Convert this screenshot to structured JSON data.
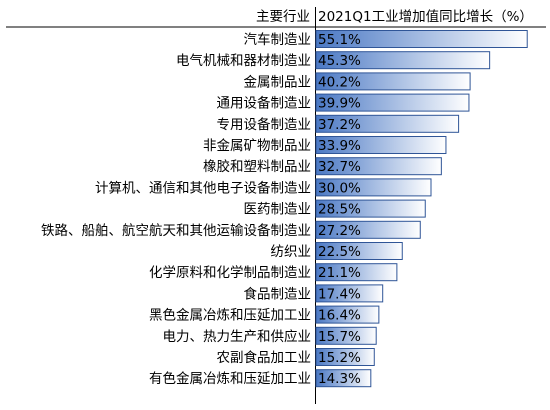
{
  "chart_data": {
    "type": "bar",
    "orientation": "horizontal",
    "header_category": "主要行业",
    "header_value": "2021Q1工业增加值同比增长（%）",
    "categories": [
      "汽车制造业",
      "电气机械和器材制造业",
      "金属制品业",
      "通用设备制造业",
      "专用设备制造业",
      "非金属矿物制品业",
      "橡胶和塑料制品业",
      "计算机、通信和其他电子设备制造业",
      "医药制造业",
      "铁路、船舶、航空航天和其他运输设备制造业",
      "纺织业",
      "化学原料和化学制品制造业",
      "食品制造业",
      "黑色金属冶炼和压延加工业",
      "电力、热力生产和供应业",
      "农副食品加工业",
      "有色金属冶炼和压延加工业"
    ],
    "values": [
      55.1,
      45.3,
      40.2,
      39.9,
      37.2,
      33.9,
      32.7,
      30.0,
      28.5,
      27.2,
      22.5,
      21.1,
      17.4,
      16.4,
      15.7,
      15.2,
      14.3
    ],
    "value_labels": [
      "55.1%",
      "45.3%",
      "40.2%",
      "39.9%",
      "37.2%",
      "33.9%",
      "32.7%",
      "30.0%",
      "28.5%",
      "27.2%",
      "22.5%",
      "21.1%",
      "17.4%",
      "16.4%",
      "15.7%",
      "15.2%",
      "14.3%"
    ],
    "xlim": [
      0,
      60
    ],
    "bar_gradient": [
      "#4a78c4",
      "#ffffff"
    ],
    "bar_border": "#2f5597",
    "grid": false,
    "legend": "none"
  }
}
